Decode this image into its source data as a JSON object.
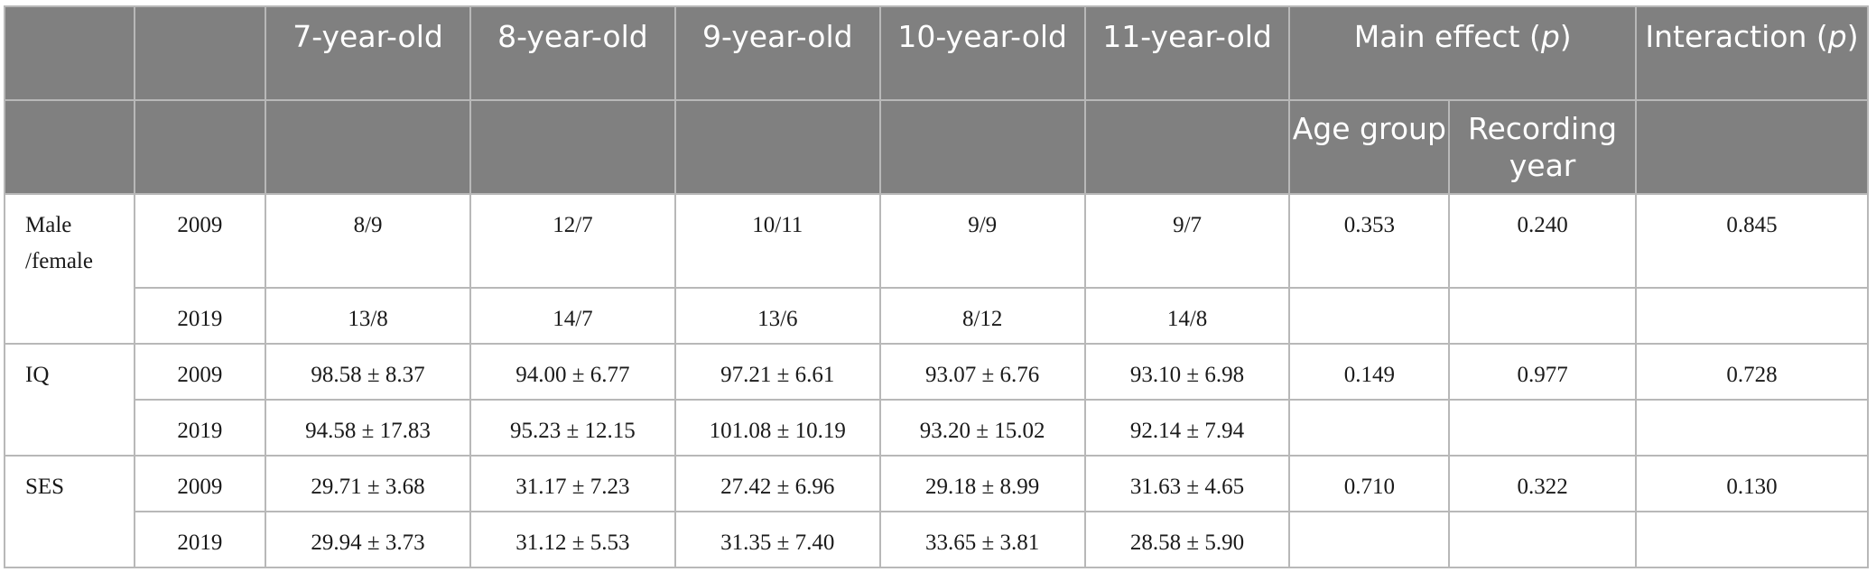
{
  "header": {
    "ages": [
      "7-year-old",
      "8-year-old",
      "9-year-old",
      "10-year-old",
      "11-year-old"
    ],
    "main_effect": "Main effect (p)",
    "main_effect_prefix": "Main effect (",
    "p": "p",
    "close": ")",
    "interaction_prefix": "Interaction (",
    "interaction": "Interaction (p)",
    "age_group": "Age group",
    "recording_year": "Recording year"
  },
  "rows": [
    {
      "label": "Male /female",
      "y1": "2009",
      "v1": [
        "8/9",
        "12/7",
        "10/11",
        "9/9",
        "9/7"
      ],
      "age_group": "0.353",
      "recording_year": "0.240",
      "interaction": "0.845",
      "y2": "2019",
      "v2": [
        "13/8",
        "14/7",
        "13/6",
        "8/12",
        "14/8"
      ]
    },
    {
      "label": "IQ",
      "y1": "2009",
      "v1": [
        "98.58 ± 8.37",
        "94.00 ± 6.77",
        "97.21 ± 6.61",
        "93.07 ± 6.76",
        "93.10 ± 6.98"
      ],
      "age_group": "0.149",
      "recording_year": "0.977",
      "interaction": "0.728",
      "y2": "2019",
      "v2": [
        "94.58 ± 17.83",
        "95.23 ± 12.15",
        "101.08 ± 10.19",
        "93.20 ± 15.02",
        "92.14 ± 7.94"
      ]
    },
    {
      "label": "SES",
      "y1": "2009",
      "v1": [
        "29.71 ± 3.68",
        "31.17 ± 7.23",
        "27.42 ± 6.96",
        "29.18 ± 8.99",
        "31.63 ± 4.65"
      ],
      "age_group": "0.710",
      "recording_year": "0.322",
      "interaction": "0.130",
      "y2": "2019",
      "v2": [
        "29.94 ± 3.73",
        "31.12 ± 5.53",
        "31.35 ± 7.40",
        "33.65 ± 3.81",
        "28.58 ± 5.90"
      ]
    }
  ]
}
